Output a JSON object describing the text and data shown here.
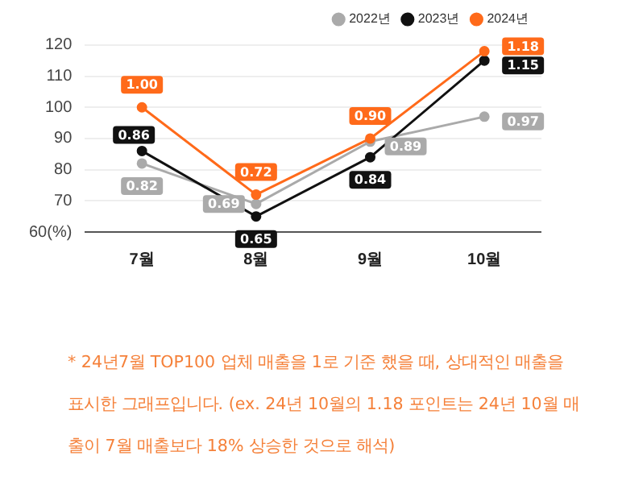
{
  "chart_data": {
    "type": "line",
    "categories": [
      "7월",
      "8월",
      "9월",
      "10월"
    ],
    "series": [
      {
        "name": "2022년",
        "color": "#aaaaaa",
        "values": [
          82,
          69,
          89,
          97
        ]
      },
      {
        "name": "2023년",
        "color": "#111111",
        "values": [
          86,
          65,
          84,
          115
        ]
      },
      {
        "name": "2024년",
        "color": "#ff6a1a",
        "values": [
          100,
          72,
          90,
          118
        ]
      }
    ],
    "ylim": [
      60,
      121
    ],
    "yticks": [
      {
        "value": 60,
        "label": "60(%)"
      },
      70,
      80,
      90,
      100,
      110,
      120
    ],
    "grid": "y",
    "legend": "top right",
    "marker": "circle",
    "line_style": "solid",
    "annotations": [
      {
        "text": "0.82",
        "x": "7월",
        "y": 82
      },
      {
        "text": "0.69",
        "x": "8월",
        "y": 69
      },
      {
        "text": "0.89",
        "x": "9월",
        "y": 89
      },
      {
        "text": "0.97",
        "x": "10월",
        "y": 97
      },
      {
        "text": "0.86",
        "x": "7월",
        "y": 86
      },
      {
        "text": "0.65",
        "x": "8월",
        "y": 65
      },
      {
        "text": "0.84",
        "x": "9월",
        "y": 84
      },
      {
        "text": "1.15",
        "x": "10월",
        "y": 115
      },
      {
        "text": "1.00",
        "x": "7월",
        "y": 100
      },
      {
        "text": "0.72",
        "x": "8월",
        "y": 72
      },
      {
        "text": "0.90",
        "x": "9월",
        "y": 90
      },
      {
        "text": "1.18",
        "x": "10월",
        "y": 118
      },
      "* 24년7월 TOP100 업체 매출을 1로 기준 했을 때, 상대적인 매출을 표시한 그래프입니다. (ex. 24년 10월의 1.18 포인트는 24년 10월 매출이 7월 매출보다 18% 상승한 것으로 해석)"
    ]
  }
}
